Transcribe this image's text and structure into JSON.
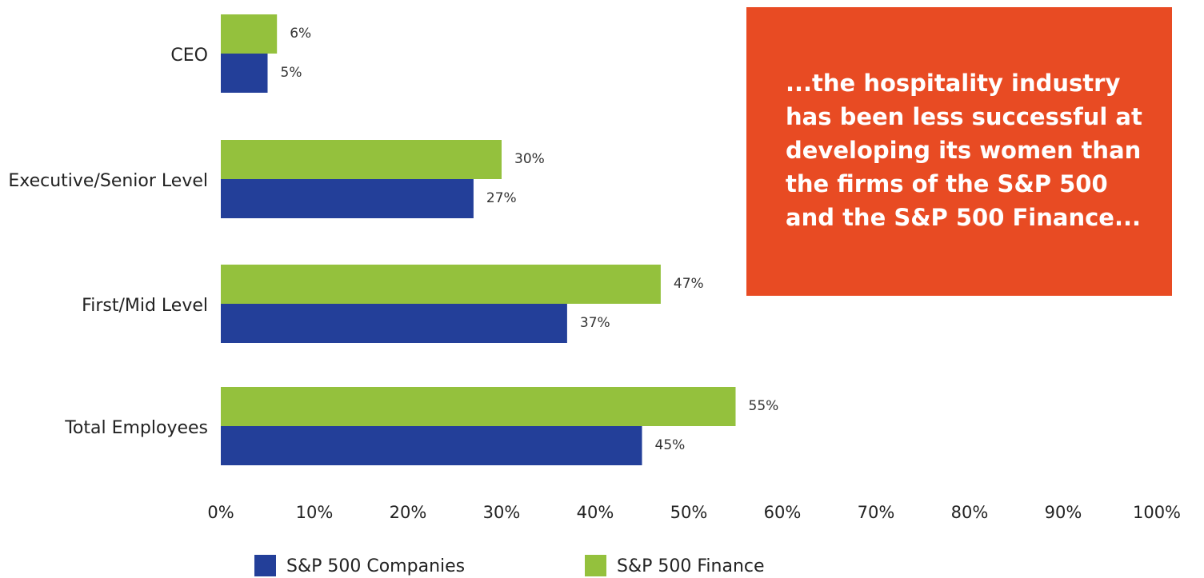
{
  "chart_data": {
    "type": "hbar",
    "categories": [
      "CEO",
      "Executive/Senior Level",
      "First/Mid Level",
      "Total Employees"
    ],
    "series": [
      {
        "name": "S&P 500 Companies",
        "color": "#233f99",
        "values": [
          5,
          27,
          37,
          45
        ],
        "value_labels": [
          "5%",
          "27%",
          "37%",
          "45%"
        ]
      },
      {
        "name": "S&P 500 Finance",
        "color": "#94c13d",
        "values": [
          6,
          30,
          47,
          55
        ],
        "value_labels": [
          "6%",
          "30%",
          "47%",
          "55%"
        ]
      }
    ],
    "xlim": [
      0,
      100
    ],
    "xticks": [
      {
        "value": 0,
        "label": "0%"
      },
      {
        "value": 10,
        "label": "10%"
      },
      {
        "value": 20,
        "label": "20%"
      },
      {
        "value": 30,
        "label": "30%"
      },
      {
        "value": 40,
        "label": "40%"
      },
      {
        "value": 50,
        "label": "50%"
      },
      {
        "value": 60,
        "label": "60%"
      },
      {
        "value": 70,
        "label": "70%"
      },
      {
        "value": 80,
        "label": "80%"
      },
      {
        "value": 90,
        "label": "90%"
      },
      {
        "value": 100,
        "label": "100%"
      }
    ],
    "annotation": [
      "...the hospitality industry",
      "has been less successful at",
      "developing its women than",
      "the firms of the S&P 500",
      "and the S&P 500 Finance..."
    ],
    "annotation_color": "#e84b23"
  }
}
